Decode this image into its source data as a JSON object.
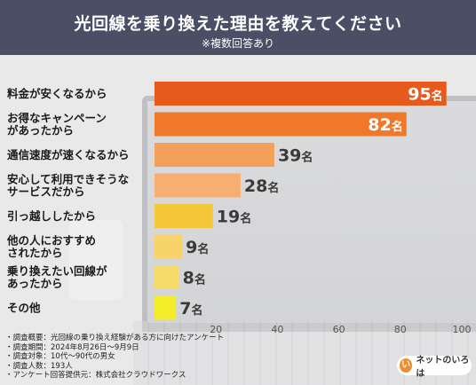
{
  "header": {
    "title": "光回線を乗り換えた理由を教えてください",
    "subtitle": "※複数回答あり"
  },
  "chart_data": {
    "type": "bar",
    "orientation": "horizontal",
    "categories": [
      [
        "料金が安くなるから"
      ],
      [
        "お得なキャンペーン",
        "があったから"
      ],
      [
        "通信速度が速くなるから"
      ],
      [
        "安心して利用できそうな",
        "サービスだから"
      ],
      [
        "引っ越ししたから"
      ],
      [
        "他の人におすすめ",
        "されたから"
      ],
      [
        "乗り換えたい回線が",
        "あったから"
      ],
      [
        "その他"
      ]
    ],
    "values": [
      95,
      82,
      39,
      28,
      19,
      9,
      8,
      7
    ],
    "value_unit": "名",
    "bar_colors": [
      "#e85a1b",
      "#f0782a",
      "#f5a05a",
      "#f7ae70",
      "#f5c63a",
      "#f8d36a",
      "#f6da6a",
      "#f5ec2a"
    ],
    "xlim": [
      0,
      100
    ],
    "xticks": [
      20,
      40,
      60,
      80,
      100
    ],
    "grid": false
  },
  "footer": {
    "lines": [
      "・調査概要：光回線の乗り換え経験がある方に向けたアンケート",
      "・調査期間：2024年8月26日〜9月9日",
      "・調査対象：10代〜90代の男女",
      "・調査人数：193人",
      "・アンケート回答提供元：株式会社クラウドワークス"
    ]
  },
  "logo": {
    "mark": "い",
    "text": "ネットのいろは"
  }
}
